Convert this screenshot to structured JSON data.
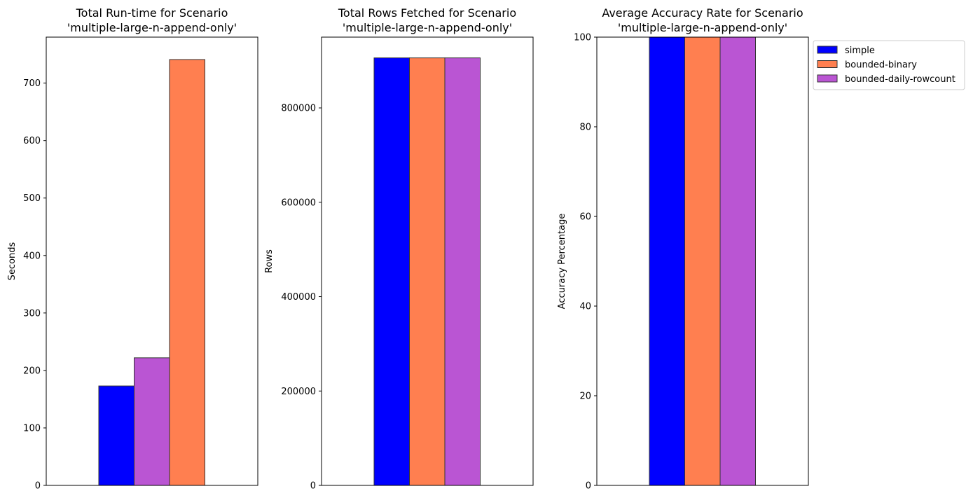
{
  "chart_data": [
    {
      "type": "bar",
      "title": "Total Run-time for Scenario\n'multiple-large-n-append-only'",
      "ylabel": "Seconds",
      "xlabel": "",
      "ylim": [
        0,
        780
      ],
      "yticks": [
        0,
        100,
        200,
        300,
        400,
        500,
        600,
        700
      ],
      "bars": [
        {
          "series": "simple",
          "value": 173,
          "color": "#0000ff"
        },
        {
          "series": "bounded-daily-rowcount",
          "value": 222,
          "color": "#ba55d3"
        },
        {
          "series": "bounded-binary",
          "value": 741,
          "color": "#ff7f50"
        }
      ]
    },
    {
      "type": "bar",
      "title": "Total Rows Fetched for Scenario\n'multiple-large-n-append-only'",
      "ylabel": "Rows",
      "xlabel": "",
      "ylim": [
        0,
        950000
      ],
      "yticks": [
        0,
        200000,
        400000,
        600000,
        800000
      ],
      "bars": [
        {
          "series": "simple",
          "value": 906000,
          "color": "#0000ff"
        },
        {
          "series": "bounded-binary",
          "value": 906000,
          "color": "#ff7f50"
        },
        {
          "series": "bounded-daily-rowcount",
          "value": 906000,
          "color": "#ba55d3"
        }
      ]
    },
    {
      "type": "bar",
      "title": "Average Accuracy Rate for Scenario\n'multiple-large-n-append-only'",
      "ylabel": "Accuracy Percentage",
      "xlabel": "",
      "ylim": [
        0,
        100
      ],
      "yticks": [
        0,
        20,
        40,
        60,
        80,
        100
      ],
      "bars": [
        {
          "series": "simple",
          "value": 100,
          "color": "#0000ff"
        },
        {
          "series": "bounded-binary",
          "value": 100,
          "color": "#ff7f50"
        },
        {
          "series": "bounded-daily-rowcount",
          "value": 100,
          "color": "#ba55d3"
        }
      ]
    }
  ],
  "legend": {
    "placement": "outside-top-right",
    "items": [
      {
        "label": "simple",
        "color": "#0000ff"
      },
      {
        "label": "bounded-binary",
        "color": "#ff7f50"
      },
      {
        "label": "bounded-daily-rowcount",
        "color": "#ba55d3"
      }
    ]
  }
}
